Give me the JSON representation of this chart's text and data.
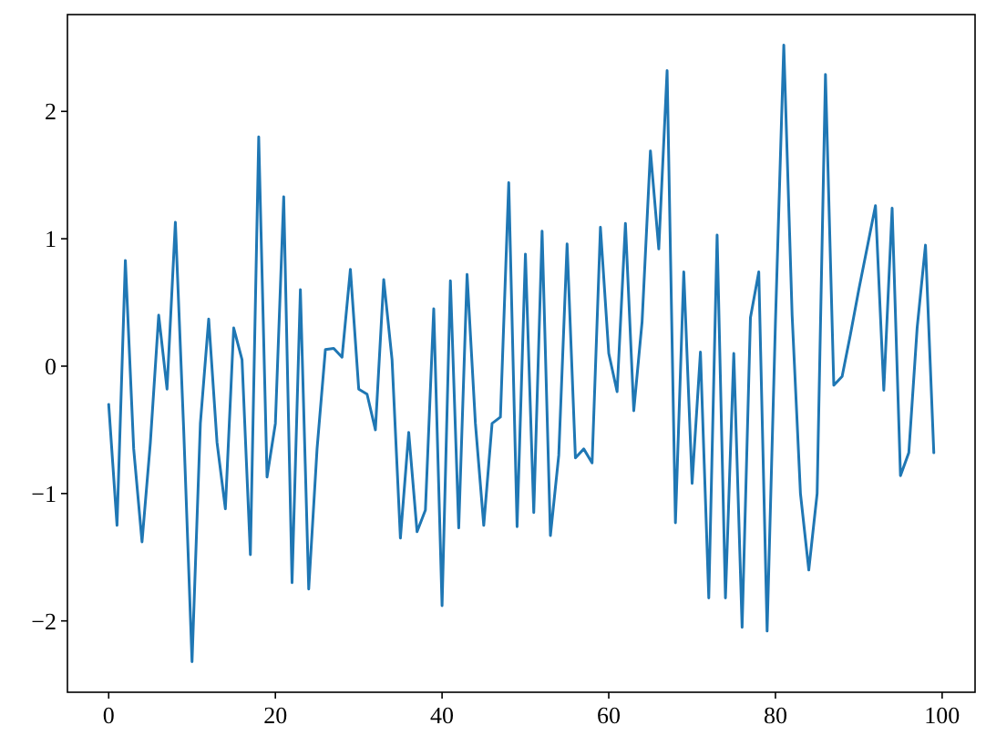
{
  "chart_data": {
    "type": "line",
    "x": [
      0,
      1,
      2,
      3,
      4,
      5,
      6,
      7,
      8,
      9,
      10,
      11,
      12,
      13,
      14,
      15,
      16,
      17,
      18,
      19,
      20,
      21,
      22,
      23,
      24,
      25,
      26,
      27,
      28,
      29,
      30,
      31,
      32,
      33,
      34,
      35,
      36,
      37,
      38,
      39,
      40,
      41,
      42,
      43,
      44,
      45,
      46,
      47,
      48,
      49,
      50,
      51,
      52,
      53,
      54,
      55,
      56,
      57,
      58,
      59,
      60,
      61,
      62,
      63,
      64,
      65,
      66,
      67,
      68,
      69,
      70,
      71,
      72,
      73,
      74,
      75,
      76,
      77,
      78,
      79,
      80,
      81,
      82,
      83,
      84,
      85,
      86,
      87,
      88,
      89,
      90,
      91,
      92,
      93,
      94,
      95,
      96,
      97,
      98,
      99
    ],
    "series": [
      {
        "color": "#1f77b4",
        "values": [
          -0.3,
          -1.25,
          0.83,
          -0.65,
          -1.38,
          -0.6,
          0.4,
          -0.18,
          1.13,
          -0.5,
          -2.32,
          -0.45,
          0.37,
          -0.6,
          -1.12,
          0.3,
          0.05,
          -1.48,
          1.8,
          -0.87,
          -0.45,
          1.33,
          -1.7,
          0.6,
          -1.75,
          -0.65,
          0.13,
          0.14,
          0.07,
          0.76,
          -0.18,
          -0.22,
          -0.5,
          0.68,
          0.05,
          -1.35,
          -0.52,
          -1.3,
          -1.13,
          0.45,
          -1.88,
          0.67,
          -1.27,
          0.72,
          -0.45,
          -1.25,
          -0.45,
          -0.4,
          1.44,
          -1.26,
          0.88,
          -1.15,
          1.06,
          -1.33,
          -0.7,
          0.96,
          -0.72,
          -0.65,
          -0.76,
          1.09,
          0.1,
          -0.2,
          1.12,
          -0.35,
          0.35,
          1.69,
          0.92,
          2.32,
          -1.23,
          0.74,
          -0.92,
          0.11,
          -1.82,
          1.03,
          -1.82,
          0.1,
          -2.05,
          0.38,
          0.74,
          -2.08,
          0.35,
          2.52,
          0.4,
          -1.0,
          -1.6,
          -1.0,
          2.29,
          -0.15,
          -0.08,
          0.25,
          0.6,
          0.93,
          1.26,
          -0.19,
          1.24,
          -0.86,
          -0.68,
          0.3,
          0.95,
          -0.68
        ]
      }
    ],
    "xlim": [
      -4.95,
      103.95
    ],
    "ylim": [
      -2.56,
      2.76
    ],
    "xticks": [
      0,
      20,
      40,
      60,
      80,
      100
    ],
    "yticks": [
      -2,
      -1,
      0,
      1,
      2
    ],
    "grid": false,
    "line_style": "solid",
    "marker": "none"
  }
}
